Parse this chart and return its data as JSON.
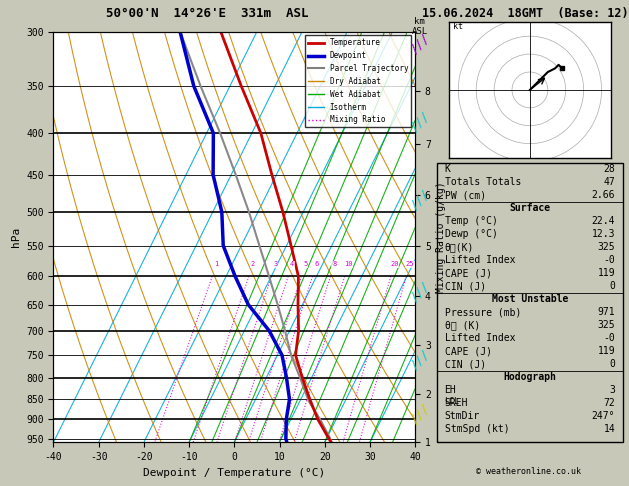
{
  "title_left": "50°00'N  14°26'E  331m  ASL",
  "title_right": "15.06.2024  18GMT  (Base: 12)",
  "xlabel": "Dewpoint / Temperature (°C)",
  "ylabel_left": "hPa",
  "pressure_levels": [
    300,
    350,
    400,
    450,
    500,
    550,
    600,
    650,
    700,
    750,
    800,
    850,
    900,
    950
  ],
  "pressure_major": [
    300,
    400,
    500,
    600,
    700,
    800,
    900
  ],
  "temp_range": [
    -40,
    40
  ],
  "skew_factor": 45,
  "stats_k": 28,
  "stats_tt": 47,
  "stats_pw": 2.66,
  "surface_temp": 22.4,
  "surface_dewp": 12.3,
  "surface_theta_e": 325,
  "surface_li": "-0",
  "surface_cape": 119,
  "surface_cin": 0,
  "mu_pressure": 971,
  "mu_theta_e": 325,
  "mu_li": "-0",
  "mu_cape": 119,
  "mu_cin": 0,
  "hodo_eh": 3,
  "hodo_sreh": 72,
  "hodo_stmdir": "247°",
  "hodo_stmspd": 14,
  "copyright": "© weatheronline.co.uk",
  "mixing_ratios": [
    1,
    2,
    3,
    4,
    5,
    6,
    8,
    10,
    20,
    25
  ],
  "km_ticks": [
    1,
    2,
    3,
    4,
    5,
    6,
    7,
    8
  ],
  "km_pressures": [
    975,
    849,
    737,
    640,
    555,
    480,
    414,
    356
  ],
  "lcl_pressure": 855,
  "temp_profile_p": [
    971,
    950,
    900,
    850,
    800,
    750,
    700,
    650,
    600,
    550,
    500,
    450,
    400,
    350,
    300
  ],
  "temp_profile_t": [
    22.4,
    20.5,
    16.0,
    12.0,
    8.0,
    4.0,
    2.0,
    -1.0,
    -4.0,
    -9.0,
    -14.5,
    -21.0,
    -28.0,
    -37.5,
    -48.0
  ],
  "dewp_profile_p": [
    971,
    950,
    900,
    850,
    800,
    750,
    700,
    650,
    600,
    550,
    500,
    450,
    400,
    350,
    300
  ],
  "dewp_profile_t": [
    12.3,
    11.0,
    9.0,
    7.5,
    4.5,
    1.0,
    -4.5,
    -12.0,
    -18.0,
    -24.0,
    -28.0,
    -34.0,
    -38.5,
    -48.0,
    -57.0
  ],
  "parcel_p": [
    971,
    950,
    900,
    855,
    800,
    750,
    700,
    650,
    600,
    550,
    500,
    450,
    400,
    350,
    300
  ],
  "parcel_t": [
    22.4,
    20.8,
    16.5,
    12.0,
    7.5,
    3.0,
    -1.0,
    -5.5,
    -10.5,
    -16.0,
    -22.0,
    -29.0,
    -37.0,
    -46.5,
    -57.0
  ]
}
